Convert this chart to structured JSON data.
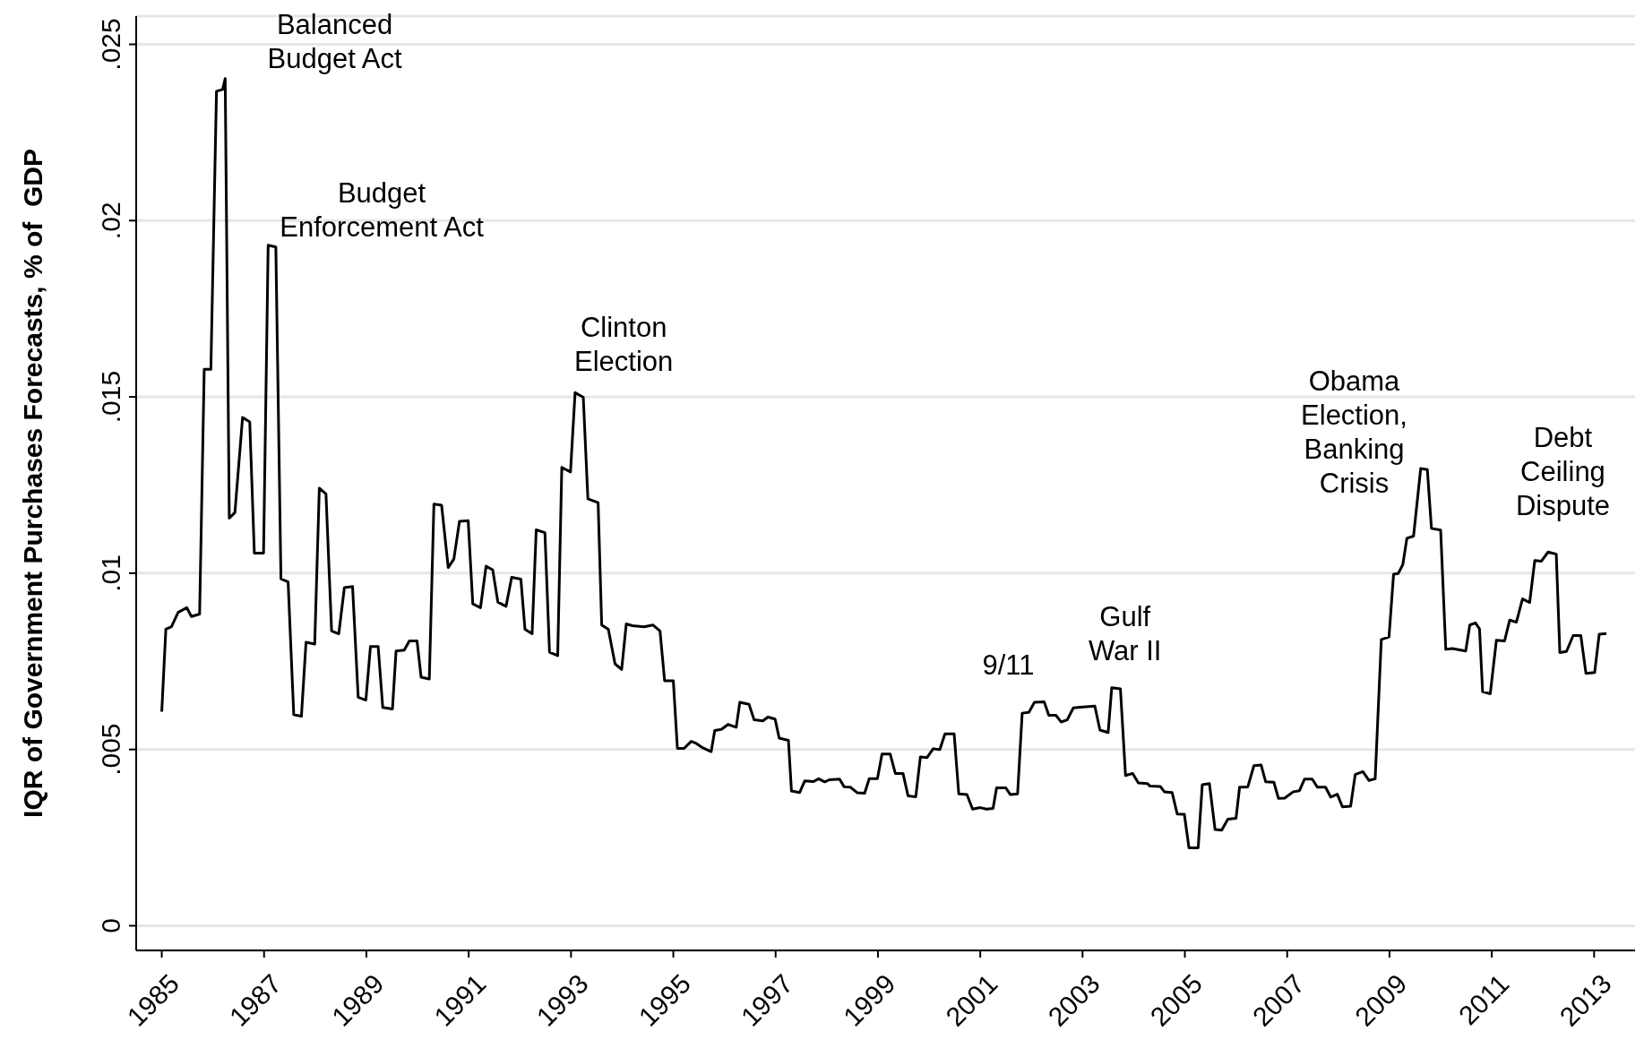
{
  "chart_data": {
    "type": "line",
    "ylabel": "IQR of Government Purchases Forecasts, % of  GDP",
    "xlim": [
      1984.5,
      2013.8
    ],
    "xticks": [
      1985,
      1987,
      1989,
      1991,
      1993,
      1995,
      1997,
      1999,
      2001,
      2003,
      2005,
      2007,
      2009,
      2011,
      2013
    ],
    "ylim": [
      -0.0007,
      0.0258
    ],
    "yticks": [
      {
        "value": 0,
        "label": "0"
      },
      {
        "value": 0.005,
        "label": ".005"
      },
      {
        "value": 0.01,
        "label": ".01"
      },
      {
        "value": 0.015,
        "label": ".015"
      },
      {
        "value": 0.02,
        "label": ".02"
      },
      {
        "value": 0.025,
        "label": ".025"
      }
    ],
    "grid": "y",
    "legend": false,
    "marker": "none",
    "line_style": "solid",
    "annotations": [
      "Balanced\nBudget Act",
      "Budget\nEnforcement Act",
      "Clinton\nElection",
      "9/11",
      "Gulf\nWar II",
      "Obama\nElection,\nBanking\nCrisis",
      "Debt\nCeiling\nDispute"
    ],
    "series": [
      {
        "color": "#000000",
        "x": [
          1985.0,
          1985.08,
          1985.19,
          1985.32,
          1985.49,
          1985.58,
          1985.74,
          1985.83,
          1985.96,
          1986.07,
          1986.19,
          1986.24,
          1986.32,
          1986.43,
          1986.58,
          1986.72,
          1986.81,
          1986.99,
          1987.08,
          1987.23,
          1987.33,
          1987.47,
          1987.58,
          1987.73,
          1987.82,
          1987.99,
          1988.08,
          1988.21,
          1988.32,
          1988.46,
          1988.57,
          1988.73,
          1988.84,
          1988.99,
          1989.08,
          1989.23,
          1989.32,
          1989.51,
          1989.58,
          1989.74,
          1989.84,
          1989.99,
          1990.07,
          1990.23,
          1990.32,
          1990.47,
          1990.6,
          1990.71,
          1990.82,
          1990.99,
          1991.08,
          1991.23,
          1991.34,
          1991.47,
          1991.57,
          1991.73,
          1991.84,
          1992.02,
          1992.1,
          1992.24,
          1992.32,
          1992.49,
          1992.58,
          1992.74,
          1992.82,
          1992.99,
          1993.08,
          1993.24,
          1993.33,
          1993.53,
          1993.6,
          1993.73,
          1993.86,
          1993.99,
          1994.08,
          1994.2,
          1994.43,
          1994.6,
          1994.74,
          1994.83,
          1995.0,
          1995.08,
          1995.21,
          1995.35,
          1995.45,
          1995.56,
          1995.74,
          1995.81,
          1995.94,
          1996.07,
          1996.23,
          1996.3,
          1996.48,
          1996.58,
          1996.75,
          1996.85,
          1996.99,
          1997.07,
          1997.25,
          1997.31,
          1997.47,
          1997.57,
          1997.74,
          1997.84,
          1997.96,
          1998.05,
          1998.25,
          1998.34,
          1998.46,
          1998.6,
          1998.74,
          1998.83,
          1998.99,
          1999.08,
          1999.24,
          1999.34,
          1999.49,
          1999.59,
          1999.74,
          1999.83,
          1999.96,
          2000.08,
          2000.21,
          2000.31,
          2000.49,
          2000.58,
          2000.74,
          2000.85,
          2001.0,
          2001.12,
          2001.25,
          2001.32,
          2001.5,
          2001.59,
          2001.73,
          2001.82,
          2001.95,
          2002.06,
          2002.25,
          2002.34,
          2002.48,
          2002.58,
          2002.7,
          2002.82,
          2002.95,
          2003.24,
          2003.34,
          2003.5,
          2003.57,
          2003.74,
          2003.84,
          2003.98,
          2004.09,
          2004.27,
          2004.32,
          2004.52,
          2004.6,
          2004.75,
          2004.85,
          2004.99,
          2005.08,
          2005.26,
          2005.34,
          2005.48,
          2005.59,
          2005.72,
          2005.84,
          2006.0,
          2006.07,
          2006.23,
          2006.35,
          2006.49,
          2006.58,
          2006.74,
          2006.83,
          2006.95,
          2007.12,
          2007.24,
          2007.34,
          2007.49,
          2007.59,
          2007.75,
          2007.85,
          2007.98,
          2008.08,
          2008.24,
          2008.33,
          2008.48,
          2008.6,
          2008.72,
          2008.84,
          2008.99,
          2009.08,
          2009.17,
          2009.26,
          2009.34,
          2009.47,
          2009.61,
          2009.74,
          2009.82,
          2010.0,
          2010.1,
          2010.23,
          2010.49,
          2010.57,
          2010.68,
          2010.76,
          2010.82,
          2010.97,
          2011.09,
          2011.25,
          2011.35,
          2011.48,
          2011.6,
          2011.74,
          2011.84,
          2011.97,
          2012.1,
          2012.26,
          2012.33,
          2012.46,
          2012.59,
          2012.74,
          2012.84,
          2013.01,
          2013.1,
          2013.24
        ],
        "values": [
          0.00607,
          0.00841,
          0.00848,
          0.00889,
          0.00902,
          0.00877,
          0.00884,
          0.01578,
          0.01578,
          0.02367,
          0.02372,
          0.02403,
          0.01156,
          0.01172,
          0.01442,
          0.01429,
          0.01057,
          0.01057,
          0.0193,
          0.01925,
          0.00984,
          0.00975,
          0.00599,
          0.00594,
          0.00804,
          0.00799,
          0.01241,
          0.01225,
          0.00836,
          0.00828,
          0.00959,
          0.00962,
          0.00648,
          0.0064,
          0.00792,
          0.00792,
          0.00619,
          0.00615,
          0.00779,
          0.00782,
          0.00808,
          0.00808,
          0.00705,
          0.007,
          0.01196,
          0.01193,
          0.01016,
          0.0104,
          0.01147,
          0.01149,
          0.00913,
          0.00902,
          0.0102,
          0.01009,
          0.00918,
          0.00906,
          0.00988,
          0.00983,
          0.00841,
          0.00828,
          0.01123,
          0.01115,
          0.00776,
          0.00766,
          0.013,
          0.01287,
          0.01512,
          0.01499,
          0.01211,
          0.012,
          0.00853,
          0.00841,
          0.00743,
          0.00727,
          0.00856,
          0.00851,
          0.00848,
          0.00853,
          0.00836,
          0.00695,
          0.00695,
          0.00503,
          0.00503,
          0.00523,
          0.00517,
          0.00506,
          0.00494,
          0.00554,
          0.00557,
          0.00571,
          0.00563,
          0.00634,
          0.00628,
          0.00584,
          0.00581,
          0.00592,
          0.00586,
          0.00532,
          0.00526,
          0.00382,
          0.00378,
          0.00411,
          0.00409,
          0.00417,
          0.00408,
          0.00414,
          0.00416,
          0.00394,
          0.00393,
          0.00377,
          0.00376,
          0.00417,
          0.00417,
          0.00487,
          0.00487,
          0.00432,
          0.00432,
          0.00368,
          0.00366,
          0.00479,
          0.00477,
          0.00502,
          0.005,
          0.00544,
          0.00544,
          0.00374,
          0.00372,
          0.00331,
          0.00335,
          0.00331,
          0.00333,
          0.00391,
          0.00391,
          0.00372,
          0.00374,
          0.00603,
          0.00605,
          0.00634,
          0.00635,
          0.00597,
          0.00597,
          0.00578,
          0.00584,
          0.00618,
          0.0062,
          0.00623,
          0.00555,
          0.00548,
          0.00675,
          0.00672,
          0.00426,
          0.00432,
          0.00405,
          0.00403,
          0.00396,
          0.00395,
          0.0038,
          0.00378,
          0.00317,
          0.00316,
          0.00221,
          0.00221,
          0.004,
          0.00403,
          0.00273,
          0.00271,
          0.00302,
          0.00305,
          0.00393,
          0.00394,
          0.00454,
          0.00456,
          0.00408,
          0.00407,
          0.00361,
          0.00362,
          0.0038,
          0.00383,
          0.00416,
          0.00416,
          0.00393,
          0.00393,
          0.00365,
          0.00373,
          0.00337,
          0.00339,
          0.00429,
          0.00437,
          0.00412,
          0.00417,
          0.00812,
          0.00819,
          0.00997,
          0.00999,
          0.01024,
          0.01099,
          0.01105,
          0.01297,
          0.01294,
          0.01127,
          0.01122,
          0.00784,
          0.00786,
          0.00779,
          0.00853,
          0.00859,
          0.00842,
          0.00664,
          0.00658,
          0.0081,
          0.00808,
          0.00867,
          0.00861,
          0.00927,
          0.00917,
          0.01036,
          0.01034,
          0.0106,
          0.01054,
          0.00775,
          0.00778,
          0.00823,
          0.00823,
          0.00716,
          0.00718,
          0.00827,
          0.00829
        ]
      }
    ]
  }
}
